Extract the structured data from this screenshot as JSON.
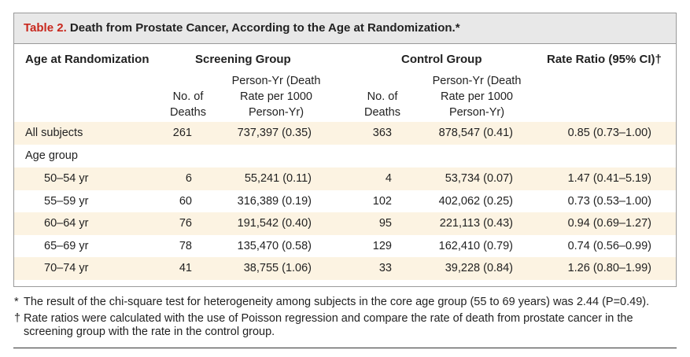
{
  "table": {
    "number": "Table 2.",
    "title": " Death from Prostate Cancer, According to the Age at Randomization.*",
    "headers": {
      "age": "Age at Randomization",
      "screening": "Screening Group",
      "control": "Control Group",
      "rate_ratio": "Rate Ratio  (95% CI)†"
    },
    "subheaders": {
      "deaths_l1": "No. of",
      "deaths_l2": "Deaths",
      "py_l1": "Person-Yr (Death",
      "py_l2": "Rate per 1000",
      "py_l3": "Person-Yr)"
    },
    "rows": [
      {
        "label": "All subjects",
        "s_deaths": "261",
        "s_py": "737,397 (0.35)",
        "c_deaths": "363",
        "c_py": "878,547 (0.41)",
        "rr": "0.85 (0.73–1.00)"
      },
      {
        "label": "Age group"
      },
      {
        "label": "50–54 yr",
        "s_deaths": "6",
        "s_py": "55,241 (0.11)",
        "c_deaths": "4",
        "c_py": "53,734 (0.07)",
        "rr": "1.47 (0.41–5.19)"
      },
      {
        "label": "55–59 yr",
        "s_deaths": "60",
        "s_py": "316,389 (0.19)",
        "c_deaths": "102",
        "c_py": "402,062 (0.25)",
        "rr": "0.73 (0.53–1.00)"
      },
      {
        "label": "60–64 yr",
        "s_deaths": "76",
        "s_py": "191,542 (0.40)",
        "c_deaths": "95",
        "c_py": "221,113 (0.43)",
        "rr": "0.94 (0.69–1.27)"
      },
      {
        "label": "65–69 yr",
        "s_deaths": "78",
        "s_py": "135,470 (0.58)",
        "c_deaths": "129",
        "c_py": "162,410 (0.79)",
        "rr": "0.74 (0.56–0.99)"
      },
      {
        "label": "70–74 yr",
        "s_deaths": "41",
        "s_py": "38,755 (1.06)",
        "c_deaths": "33",
        "c_py": "39,228 (0.84)",
        "rr": "1.26 (0.80–1.99)"
      }
    ]
  },
  "footnotes": [
    {
      "mark": "*",
      "text": "The result of the chi-square test for heterogeneity among subjects in the core age group (55 to 69 years) was 2.44 (P=0.49)."
    },
    {
      "mark": "†",
      "text": "Rate ratios were calculated with the use of Poisson regression and compare the rate of death from prostate cancer in the screening group with the rate in the control group."
    }
  ],
  "colors": {
    "accent": "#c8281e",
    "band": "#fcf3e2",
    "title_bg": "#e8e8e8"
  }
}
